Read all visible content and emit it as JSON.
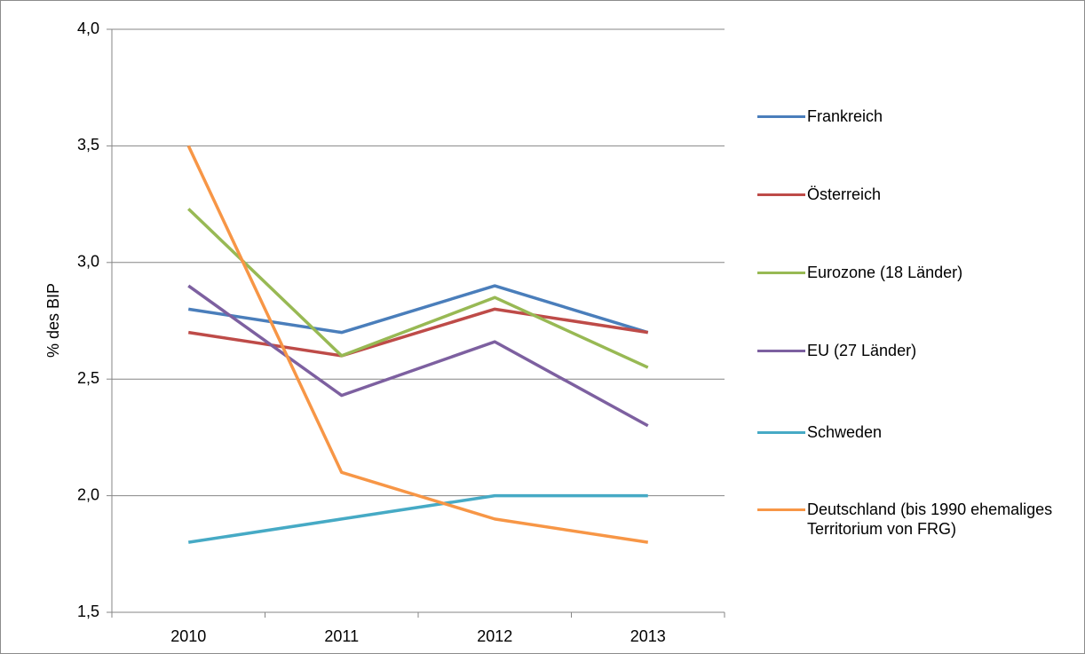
{
  "chart_data": {
    "type": "line",
    "y_label": "% des BIP",
    "categories": [
      "2010",
      "2011",
      "2012",
      "2013"
    ],
    "series": [
      {
        "name": "Frankreich",
        "color": "#4a7ebb",
        "values": [
          2.8,
          2.7,
          2.9,
          2.7
        ]
      },
      {
        "name": "Österreich",
        "color": "#be4b48",
        "values": [
          2.7,
          2.6,
          2.8,
          2.7
        ]
      },
      {
        "name": "Eurozone (18 Länder)",
        "color": "#98b954",
        "values": [
          3.23,
          2.6,
          2.85,
          2.55
        ]
      },
      {
        "name": "EU (27 Länder)",
        "color": "#7d60a0",
        "values": [
          2.9,
          2.43,
          2.66,
          2.3
        ]
      },
      {
        "name": "Schweden",
        "color": "#46aac5",
        "values": [
          1.8,
          1.9,
          2.0,
          2.0
        ]
      },
      {
        "name": "Deutschland (bis 1990 ehemaliges Territorium von FRG)",
        "color": "#f79646",
        "values": [
          3.5,
          2.1,
          1.9,
          1.8
        ]
      }
    ],
    "ylim": [
      1.5,
      4.0
    ],
    "yticks": [
      {
        "value": 1.5,
        "label": "1,5"
      },
      {
        "value": 2.0,
        "label": "2,0"
      },
      {
        "value": 2.5,
        "label": "2,5"
      },
      {
        "value": 3.0,
        "label": "3,0"
      },
      {
        "value": 3.5,
        "label": "3,5"
      },
      {
        "value": 4.0,
        "label": "4,0"
      }
    ],
    "grid": true,
    "legend": "right"
  }
}
